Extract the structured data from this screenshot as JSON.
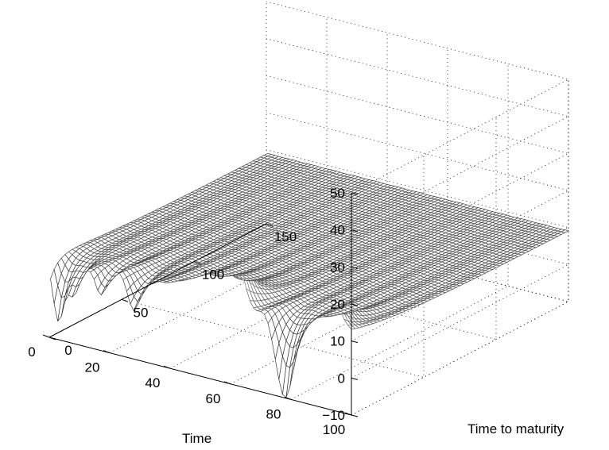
{
  "chart_data": {
    "type": "surface",
    "description_axes": "3-D mesh surface",
    "xlabel": "Time",
    "ylabel": "Time to maturity",
    "zlabel": "",
    "x_ticks": [
      "0",
      "20",
      "40",
      "60",
      "80",
      "100"
    ],
    "y_ticks": [
      "0",
      "50",
      "100",
      "150"
    ],
    "z_ticks": [
      "-10",
      "0",
      "10",
      "20",
      "30",
      "40",
      "50"
    ],
    "xlim": [
      0,
      100
    ],
    "ylim": [
      0,
      150
    ],
    "zlim": [
      -10,
      50
    ],
    "grid": true,
    "colormap": "gray",
    "surface_profile": {
      "plateau_level_at_long_maturity": 9,
      "short_maturity_spikes": [
        {
          "time": 93,
          "peak": 24
        },
        {
          "time": 78,
          "peak": -10
        },
        {
          "time": 60,
          "peak": 34
        },
        {
          "time": 52,
          "peak": 30
        },
        {
          "time": 45,
          "peak": 22
        },
        {
          "time": 28,
          "peak": 3
        },
        {
          "time": 17,
          "peak": 5
        },
        {
          "time": 8,
          "peak": 3
        },
        {
          "time": 3,
          "peak": -5
        }
      ]
    }
  }
}
